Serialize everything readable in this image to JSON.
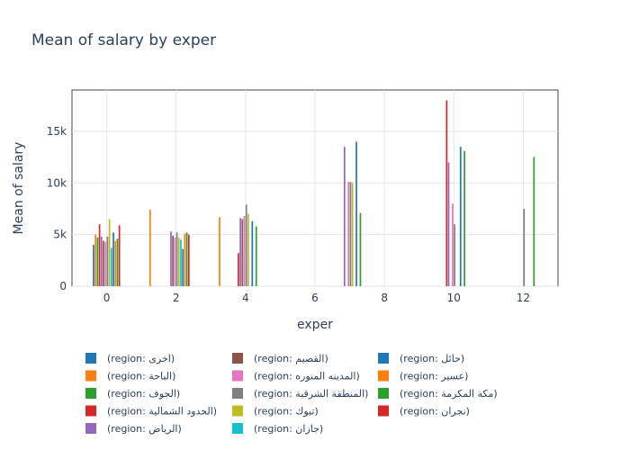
{
  "chart_data": {
    "type": "bar",
    "title": "Mean of salary by exper",
    "xlabel": "exper",
    "ylabel": "Mean of salary",
    "x_range": [
      -1,
      13
    ],
    "ylim": [
      0,
      19000
    ],
    "x_ticks": [
      0,
      2,
      4,
      6,
      8,
      10,
      12
    ],
    "x_tick_labels": [
      "0",
      "2",
      "4",
      "6",
      "8",
      "10",
      "12"
    ],
    "y_ticks": [
      0,
      5000,
      10000,
      15000
    ],
    "y_tick_labels": [
      "0",
      "5k",
      "10k",
      "15k"
    ],
    "grid": true,
    "legend_position": "bottom",
    "categories": [
      0,
      1,
      2,
      3,
      4,
      5,
      6,
      7,
      8,
      9,
      10,
      11,
      12
    ],
    "series": [
      {
        "name": "(region: اخرى)",
        "color": "#1f77b4",
        "values": [
          4000,
          null,
          null,
          null,
          null,
          null,
          null,
          null,
          null,
          null,
          null,
          null,
          null
        ]
      },
      {
        "name": "(region: الباحة)",
        "color": "#ff7f0e",
        "values": [
          5000,
          null,
          null,
          null,
          null,
          null,
          null,
          null,
          null,
          null,
          null,
          null,
          null
        ]
      },
      {
        "name": "(region: الجوف)",
        "color": "#2ca02c",
        "values": [
          4700,
          null,
          null,
          null,
          null,
          null,
          null,
          null,
          null,
          null,
          null,
          null,
          null
        ]
      },
      {
        "name": "(region: الحدود الشمالية)",
        "color": "#d62728",
        "values": [
          6000,
          null,
          null,
          null,
          3200,
          null,
          null,
          null,
          null,
          null,
          18000,
          null,
          null
        ]
      },
      {
        "name": "(region: الرياض)",
        "color": "#9467bd",
        "values": [
          4800,
          null,
          5300,
          null,
          6600,
          null,
          null,
          13500,
          null,
          null,
          12000,
          null,
          null
        ]
      },
      {
        "name": "(region: القصيم)",
        "color": "#8c564b",
        "values": [
          4400,
          null,
          4900,
          null,
          6500,
          null,
          null,
          null,
          null,
          null,
          null,
          null,
          null
        ]
      },
      {
        "name": "(region: المدينه المنوره)",
        "color": "#e377c2",
        "values": [
          4300,
          null,
          4700,
          null,
          6800,
          null,
          null,
          10100,
          null,
          null,
          8000,
          null,
          null
        ]
      },
      {
        "name": "(region: المنطقة الشرقية)",
        "color": "#7f7f7f",
        "values": [
          4800,
          null,
          5200,
          null,
          7900,
          null,
          null,
          10100,
          null,
          null,
          6000,
          null,
          7500
        ]
      },
      {
        "name": "(region: تبوك)",
        "color": "#bcbd22",
        "values": [
          6500,
          null,
          4700,
          null,
          7000,
          null,
          null,
          10000,
          null,
          null,
          null,
          null,
          null
        ]
      },
      {
        "name": "(region: جازان)",
        "color": "#17becf",
        "values": [
          3700,
          null,
          4500,
          null,
          null,
          null,
          null,
          null,
          null,
          null,
          null,
          null,
          null
        ]
      },
      {
        "name": "(region: حائل)",
        "color": "#1f77b4",
        "values": [
          5200,
          null,
          3600,
          null,
          6300,
          null,
          null,
          14000,
          null,
          null,
          13500,
          null,
          null
        ]
      },
      {
        "name": "(region: عسير)",
        "color": "#ff7f0e",
        "values": [
          4400,
          7400,
          5100,
          6700,
          null,
          null,
          null,
          null,
          null,
          null,
          null,
          null,
          null
        ]
      },
      {
        "name": "(region: مكة المكرمة)",
        "color": "#2ca02c",
        "values": [
          4600,
          null,
          5200,
          null,
          5800,
          null,
          null,
          7100,
          null,
          null,
          13100,
          null,
          12500
        ]
      },
      {
        "name": "(region: نجران)",
        "color": "#d62728",
        "values": [
          5900,
          null,
          5000,
          null,
          null,
          null,
          null,
          null,
          null,
          null,
          null,
          null,
          null
        ]
      }
    ]
  }
}
